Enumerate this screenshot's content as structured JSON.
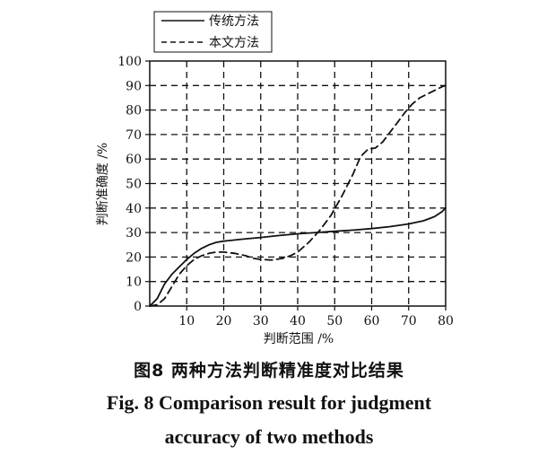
{
  "chart_data": {
    "type": "line",
    "title": "",
    "xlabel": "判断范围 /%",
    "ylabel": "判断准确度 /%",
    "xlim": [
      0,
      80
    ],
    "ylim": [
      0,
      100
    ],
    "x_ticks": [
      10,
      20,
      30,
      40,
      50,
      60,
      70,
      80
    ],
    "x_tick_labels": [
      "10",
      "20",
      "30",
      "40",
      "50",
      "60",
      "70",
      "80"
    ],
    "y_ticks": [
      0,
      10,
      20,
      30,
      40,
      50,
      60,
      70,
      80,
      90,
      100
    ],
    "y_tick_labels": [
      "0",
      "10",
      "20",
      "30",
      "40",
      "50",
      "60",
      "70",
      "80",
      "90",
      "100"
    ],
    "x_gridlines": [
      10,
      20,
      30,
      40,
      50,
      60,
      70
    ],
    "y_gridlines": [
      10,
      20,
      30,
      40,
      50,
      60,
      70,
      80,
      90
    ],
    "grid": "dashed",
    "legend_position": "top-left",
    "series": [
      {
        "name": "传统方法",
        "style": "solid",
        "color": "#111111",
        "points": [
          [
            0,
            0
          ],
          [
            2,
            3
          ],
          [
            4,
            9
          ],
          [
            6,
            13
          ],
          [
            8,
            16
          ],
          [
            10,
            19
          ],
          [
            12,
            21.5
          ],
          [
            14,
            23.5
          ],
          [
            16,
            25
          ],
          [
            18,
            26
          ],
          [
            20,
            26.5
          ],
          [
            25,
            27.3
          ],
          [
            30,
            28
          ],
          [
            35,
            28.8
          ],
          [
            40,
            29.5
          ],
          [
            45,
            30
          ],
          [
            50,
            30.5
          ],
          [
            55,
            31
          ],
          [
            60,
            31.6
          ],
          [
            65,
            32.4
          ],
          [
            70,
            33.5
          ],
          [
            74,
            34.8
          ],
          [
            77,
            36.5
          ],
          [
            79,
            38.5
          ],
          [
            80,
            40
          ]
        ]
      },
      {
        "name": "本文方法",
        "style": "dashed",
        "color": "#111111",
        "points": [
          [
            0,
            0
          ],
          [
            2,
            0.5
          ],
          [
            4,
            3
          ],
          [
            6,
            8
          ],
          [
            8,
            13
          ],
          [
            10,
            16.5
          ],
          [
            12,
            19
          ],
          [
            14,
            20.5
          ],
          [
            16,
            21.5
          ],
          [
            18,
            22
          ],
          [
            20,
            22
          ],
          [
            23,
            21.5
          ],
          [
            26,
            20.5
          ],
          [
            28,
            19.5
          ],
          [
            30,
            19
          ],
          [
            33,
            18.8
          ],
          [
            36,
            19.5
          ],
          [
            38,
            20.5
          ],
          [
            40,
            22
          ],
          [
            43,
            26
          ],
          [
            46,
            31
          ],
          [
            49,
            37
          ],
          [
            52,
            45
          ],
          [
            55,
            54
          ],
          [
            57,
            61
          ],
          [
            59,
            64
          ],
          [
            61,
            64.5
          ],
          [
            63,
            67
          ],
          [
            65,
            71
          ],
          [
            67,
            75
          ],
          [
            69,
            79
          ],
          [
            71,
            82.5
          ],
          [
            73,
            85
          ],
          [
            75,
            86.5
          ],
          [
            77,
            88
          ],
          [
            79,
            89.5
          ],
          [
            80,
            90
          ]
        ]
      }
    ]
  },
  "caption": {
    "cn": "图8  两种方法判断精准度对比结果",
    "en_line1": "Fig. 8  Comparison result for judgment",
    "en_line2": "accuracy of two methods"
  }
}
